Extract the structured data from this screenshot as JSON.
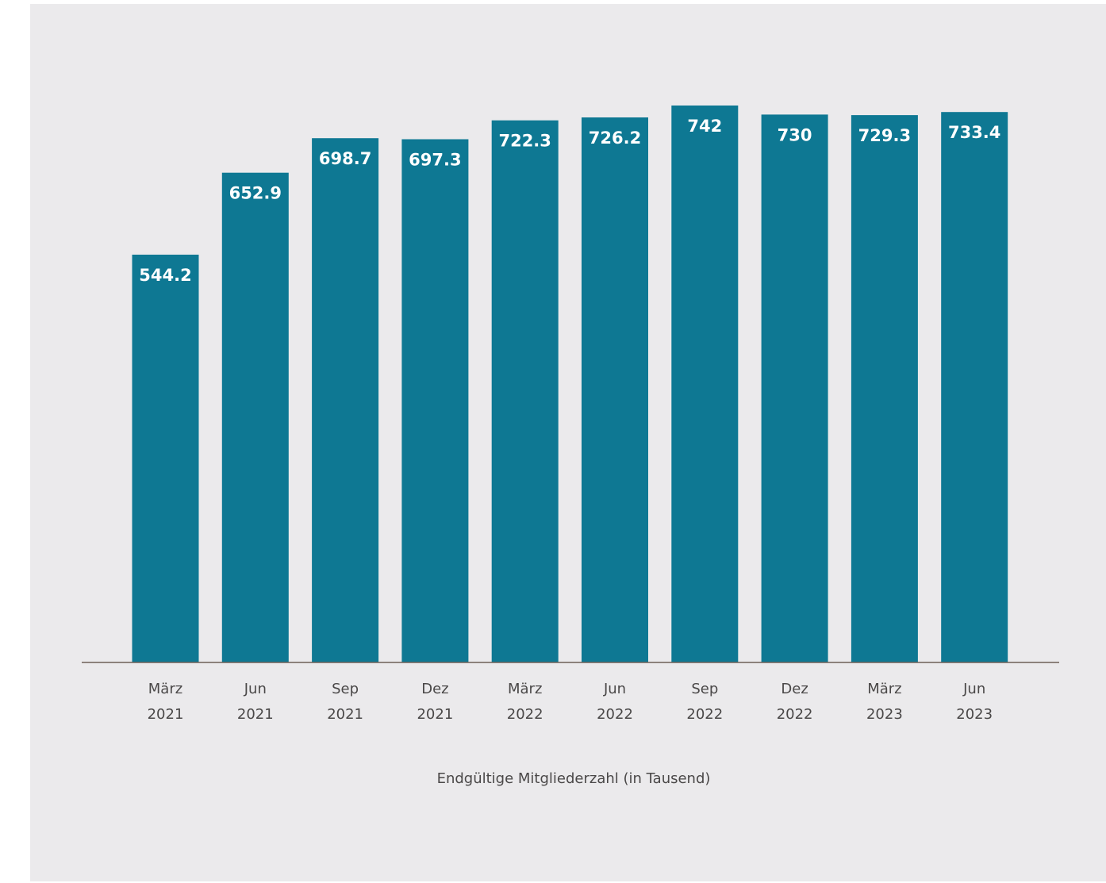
{
  "chart_data": {
    "type": "bar",
    "categories": [
      [
        "März",
        "2021"
      ],
      [
        "Jun",
        "2021"
      ],
      [
        "Sep",
        "2021"
      ],
      [
        "Dez",
        "2021"
      ],
      [
        "März",
        "2022"
      ],
      [
        "Jun",
        "2022"
      ],
      [
        "Sep",
        "2022"
      ],
      [
        "Dez",
        "2022"
      ],
      [
        "März",
        "2023"
      ],
      [
        "Jun",
        "2023"
      ]
    ],
    "values": [
      544.2,
      652.9,
      698.7,
      697.3,
      722.3,
      726.2,
      742,
      730,
      729.3,
      733.4
    ],
    "value_labels": [
      "544.2",
      "652.9",
      "698.7",
      "697.3",
      "722.3",
      "726.2",
      "742",
      "730",
      "729.3",
      "733.4"
    ],
    "title": "",
    "xlabel": "Endgültige Mitgliederzahl (in Tausend)",
    "ylabel": "",
    "ylim": [
      0,
      742
    ],
    "grid": false,
    "bar_color": "#0e7893",
    "axis_color": "#6e5f57",
    "background_color": "#ebeaec"
  }
}
